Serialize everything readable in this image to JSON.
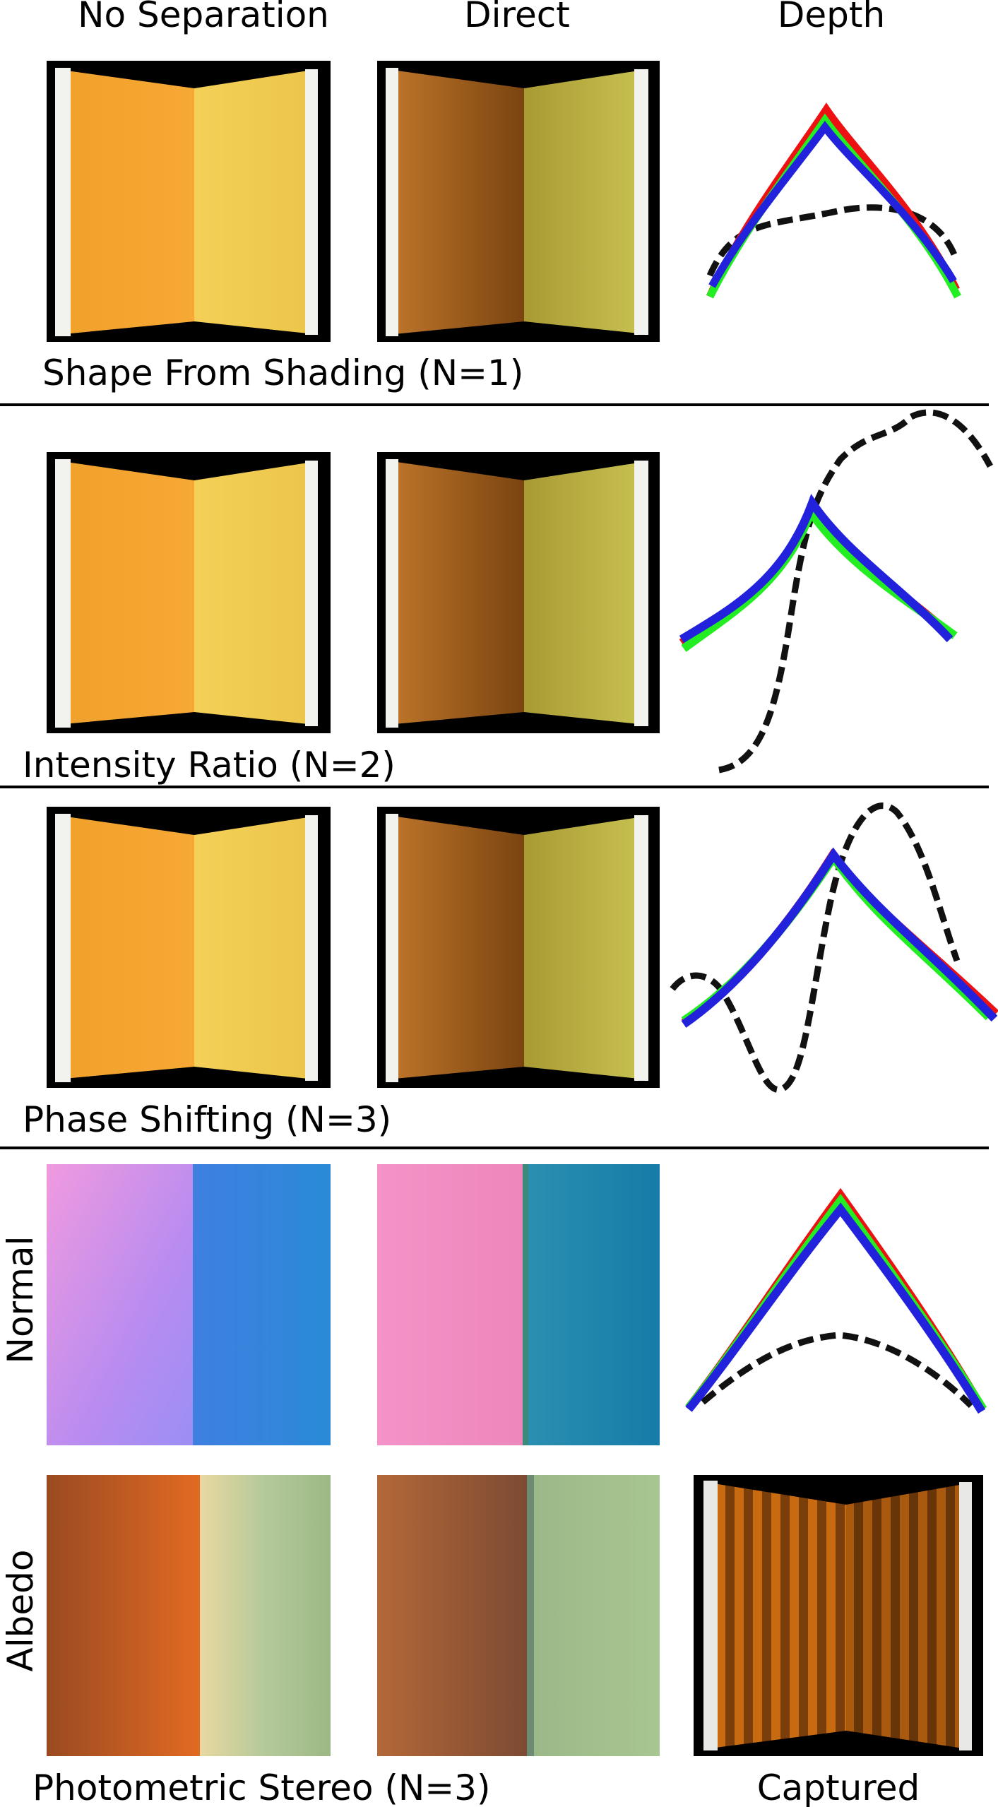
{
  "columns": [
    "No Separation",
    "Direct",
    "Depth"
  ],
  "sections": [
    {
      "label": "Shape From  Shading (N=1)"
    },
    {
      "label": "Intensity Ratio (N=2)"
    },
    {
      "label": "Phase Shifting (N=3)"
    },
    {
      "label": "Photometric Stereo (N=3)",
      "row_labels": [
        "Normal",
        "Albedo"
      ],
      "captured_label": "Captured"
    }
  ],
  "legend_colors": {
    "red": "#ee1111",
    "green": "#22ee22",
    "blue": "#2222dd",
    "dashed": "#111111"
  }
}
